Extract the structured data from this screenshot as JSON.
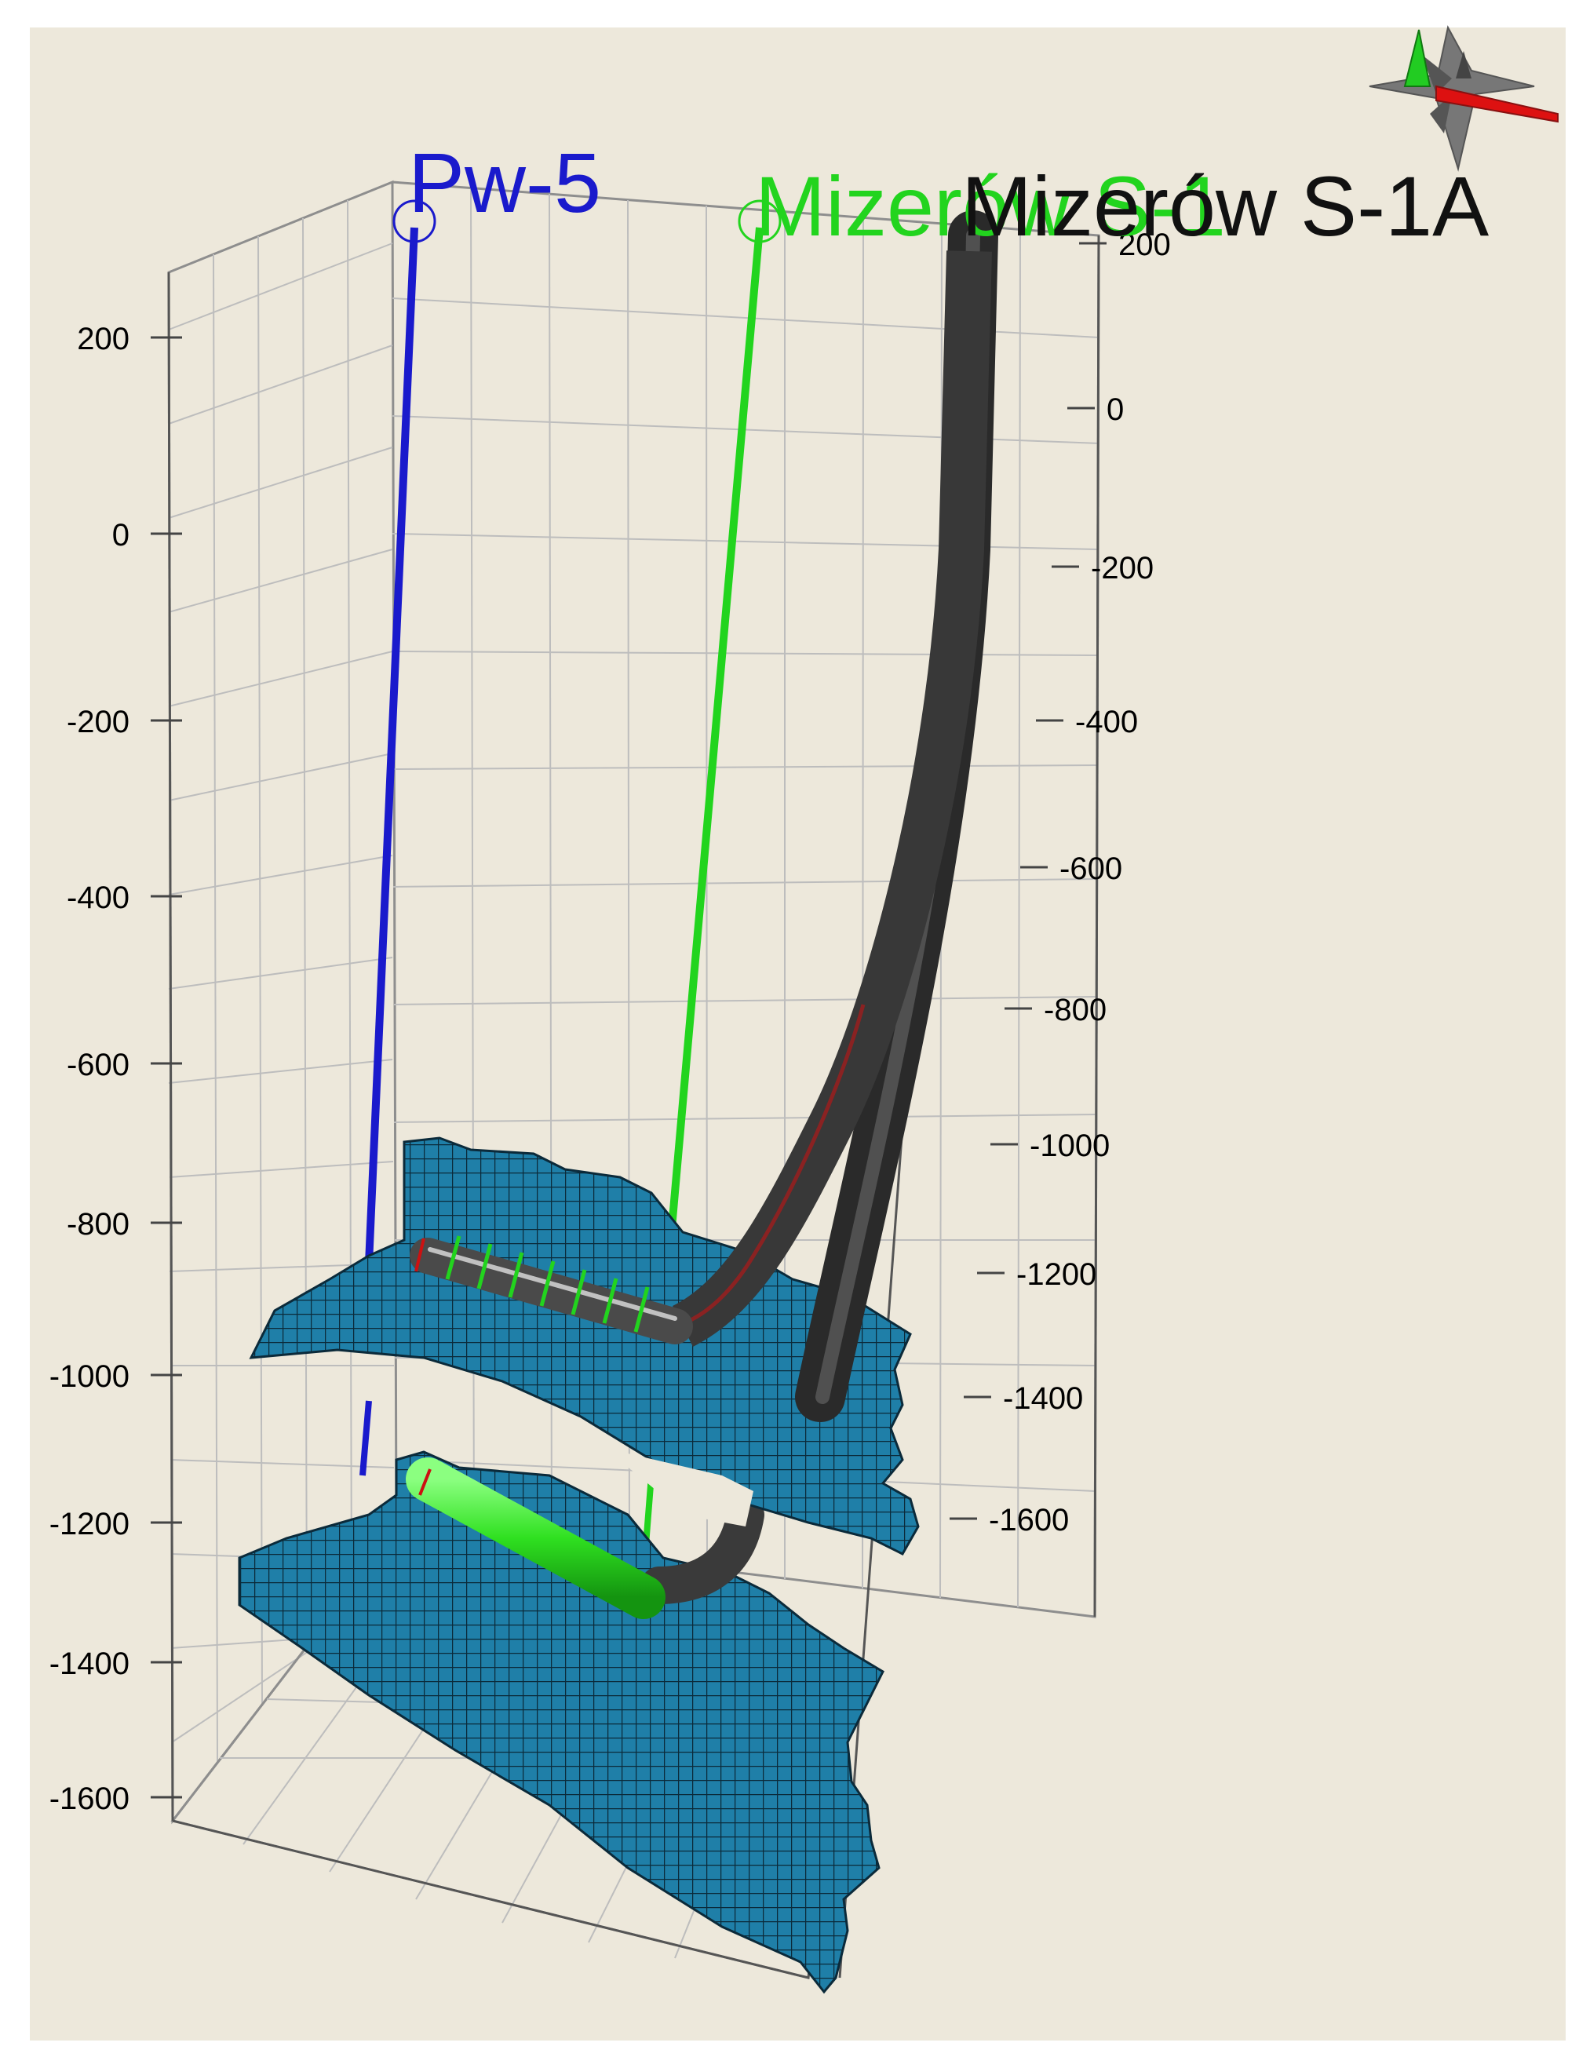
{
  "viewer": {
    "background_color": "#ede8db",
    "outer_background": "#ffffff"
  },
  "axes": {
    "left": {
      "tick_labels": [
        "200",
        "0",
        "-200",
        "-400",
        "-600",
        "-800",
        "-1000",
        "-1200",
        "-1400",
        "-1600"
      ]
    },
    "right": {
      "tick_labels": [
        "200",
        "0",
        "-200",
        "-400",
        "-600",
        "-800",
        "-1000",
        "-1200",
        "-1400",
        "-1600"
      ]
    }
  },
  "wells": [
    {
      "name": "Pw-5",
      "color": "#1a1acc"
    },
    {
      "name": "Mizerów S-1",
      "color": "#22d41e"
    },
    {
      "name": "Mizerów S-1A",
      "color": "#111111"
    }
  ],
  "surfaces": {
    "color": "#1f7fa8",
    "grid_color": "#0b2a3a"
  },
  "lateral_sections": {
    "upper_color": "#555555",
    "lower_color": "#33ee22"
  },
  "compass": {
    "icon": "compass-rose-icon",
    "colors": {
      "north": "#22cc22",
      "east": "#dd1111",
      "body": "#777777"
    }
  }
}
